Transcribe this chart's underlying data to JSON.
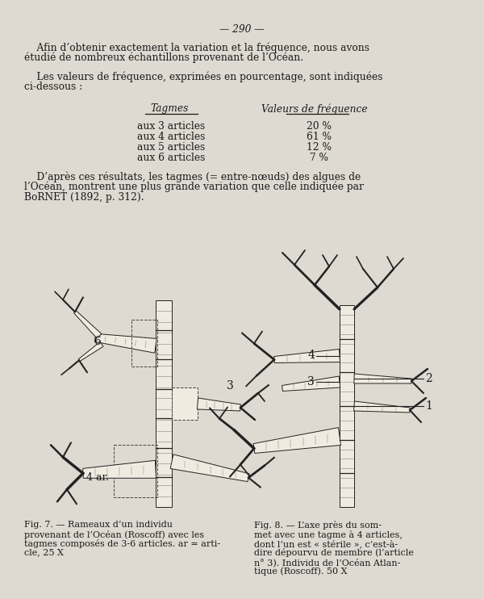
{
  "bg_color": "#dedad2",
  "text_color": "#1a1a1a",
  "page_number": "— 290 —",
  "para1_indent": "    Afin d’obtenir exactement la variation et la fréquence, nous avons",
  "para1_line2": "étudié de nombreux échantillons provenant de l’Océan.",
  "para2_indent": "    Les valeurs de fréquence, exprimées en pourcentage, sont indiquées",
  "para2_line2": "ci-dessous :",
  "table_col1_header": "Tagmes",
  "table_col2_header": "Valeurs de fréquence",
  "table_rows": [
    [
      "aux 3 articles",
      "20 %"
    ],
    [
      "aux 4 articles",
      "61 %"
    ],
    [
      "aux 5 articles",
      "12 %"
    ],
    [
      "aux 6 articles",
      " 7 %"
    ]
  ],
  "para3_indent": "    D’après ces résultats, les tagmes (= entre-nœuds) des algues de",
  "para3_line2": "l’Océan, montrent une plus grande variation que celle indiquée par",
  "para3_line3": "BᴏRNET (1892, p. 312).",
  "fig7_caption_lines": [
    "Fig. 7. — Rameaux d’un individu",
    "provenant de l’Océan (Roscoff) avec les",
    "tagmes composés de 3-6 articles. ar = arti-",
    "cle, 25 X"
  ],
  "fig8_caption_lines": [
    "Fig. 8. — L’axe près du som-",
    "met avec une tagme à 4 articles,",
    "dont l’un est « stérile », c’est-à-",
    "dire dépourvu de membre (l’article",
    "n° 3). Individu de l’Océan Atlan-",
    "tique (Roscoff). 50 X"
  ],
  "body_fontsize": 8.8,
  "caption_fontsize": 8.0,
  "figsize": [
    6.0,
    7.42
  ]
}
